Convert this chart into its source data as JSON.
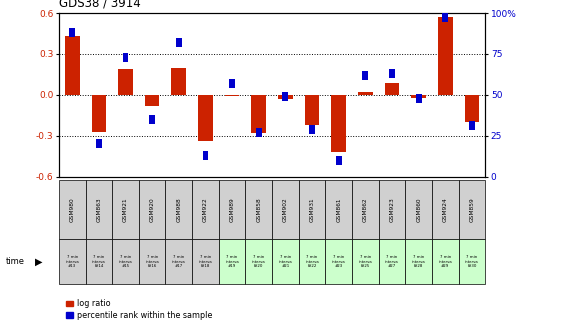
{
  "title": "GDS38 / 3914",
  "samples": [
    "GSM980",
    "GSM863",
    "GSM921",
    "GSM920",
    "GSM988",
    "GSM922",
    "GSM989",
    "GSM858",
    "GSM902",
    "GSM931",
    "GSM861",
    "GSM862",
    "GSM923",
    "GSM860",
    "GSM924",
    "GSM859"
  ],
  "time_labels": [
    "7 min\ninterva\n#13",
    "7 min\ninterva\nl#14",
    "7 min\ninterva\n#15",
    "7 min\ninterva\nl#16",
    "7 min\ninterva\n#17",
    "7 min\ninterva\nl#18",
    "7 min\ninterva\n#19",
    "7 min\ninterva\nl#20",
    "7 min\ninterva\n#21",
    "7 min\ninterva\nl#22",
    "7 min\ninterva\n#23",
    "7 min\ninterva\nl#25",
    "7 min\ninterva\n#27",
    "7 min\ninterva\nl#28",
    "7 min\ninterva\n#29",
    "7 min\ninterva\nl#30"
  ],
  "log_ratio": [
    0.43,
    -0.27,
    0.19,
    -0.08,
    0.2,
    -0.34,
    -0.01,
    -0.28,
    -0.03,
    -0.22,
    -0.42,
    0.02,
    0.09,
    -0.02,
    0.57,
    -0.2
  ],
  "percentile": [
    88,
    20,
    73,
    35,
    82,
    13,
    57,
    27,
    49,
    29,
    10,
    62,
    63,
    48,
    97,
    31
  ],
  "bar_color": "#cc2200",
  "pct_color": "#0000cc",
  "background": "#ffffff",
  "ylim": [
    -0.6,
    0.6
  ],
  "pct_ylim": [
    0,
    100
  ],
  "yticks": [
    -0.6,
    -0.3,
    0.0,
    0.3,
    0.6
  ],
  "pct_yticks": [
    0,
    25,
    50,
    75,
    100
  ],
  "dotted_lines": [
    -0.3,
    0.0,
    0.3
  ],
  "bar_width": 0.55,
  "pct_bar_width": 0.22,
  "cell_colors_gsm": [
    "#d0d0d0",
    "#d0d0d0",
    "#d0d0d0",
    "#d0d0d0",
    "#d0d0d0",
    "#d0d0d0",
    "#d0d0d0",
    "#d0d0d0",
    "#d0d0d0",
    "#d0d0d0",
    "#d0d0d0",
    "#d0d0d0",
    "#d0d0d0",
    "#d0d0d0",
    "#d0d0d0",
    "#d0d0d0"
  ],
  "cell_colors_time": [
    "#d0d0d0",
    "#d0d0d0",
    "#d0d0d0",
    "#d0d0d0",
    "#d0d0d0",
    "#d0d0d0",
    "#ccffcc",
    "#ccffcc",
    "#ccffcc",
    "#ccffcc",
    "#ccffcc",
    "#ccffcc",
    "#ccffcc",
    "#ccffcc",
    "#ccffcc",
    "#ccffcc"
  ]
}
